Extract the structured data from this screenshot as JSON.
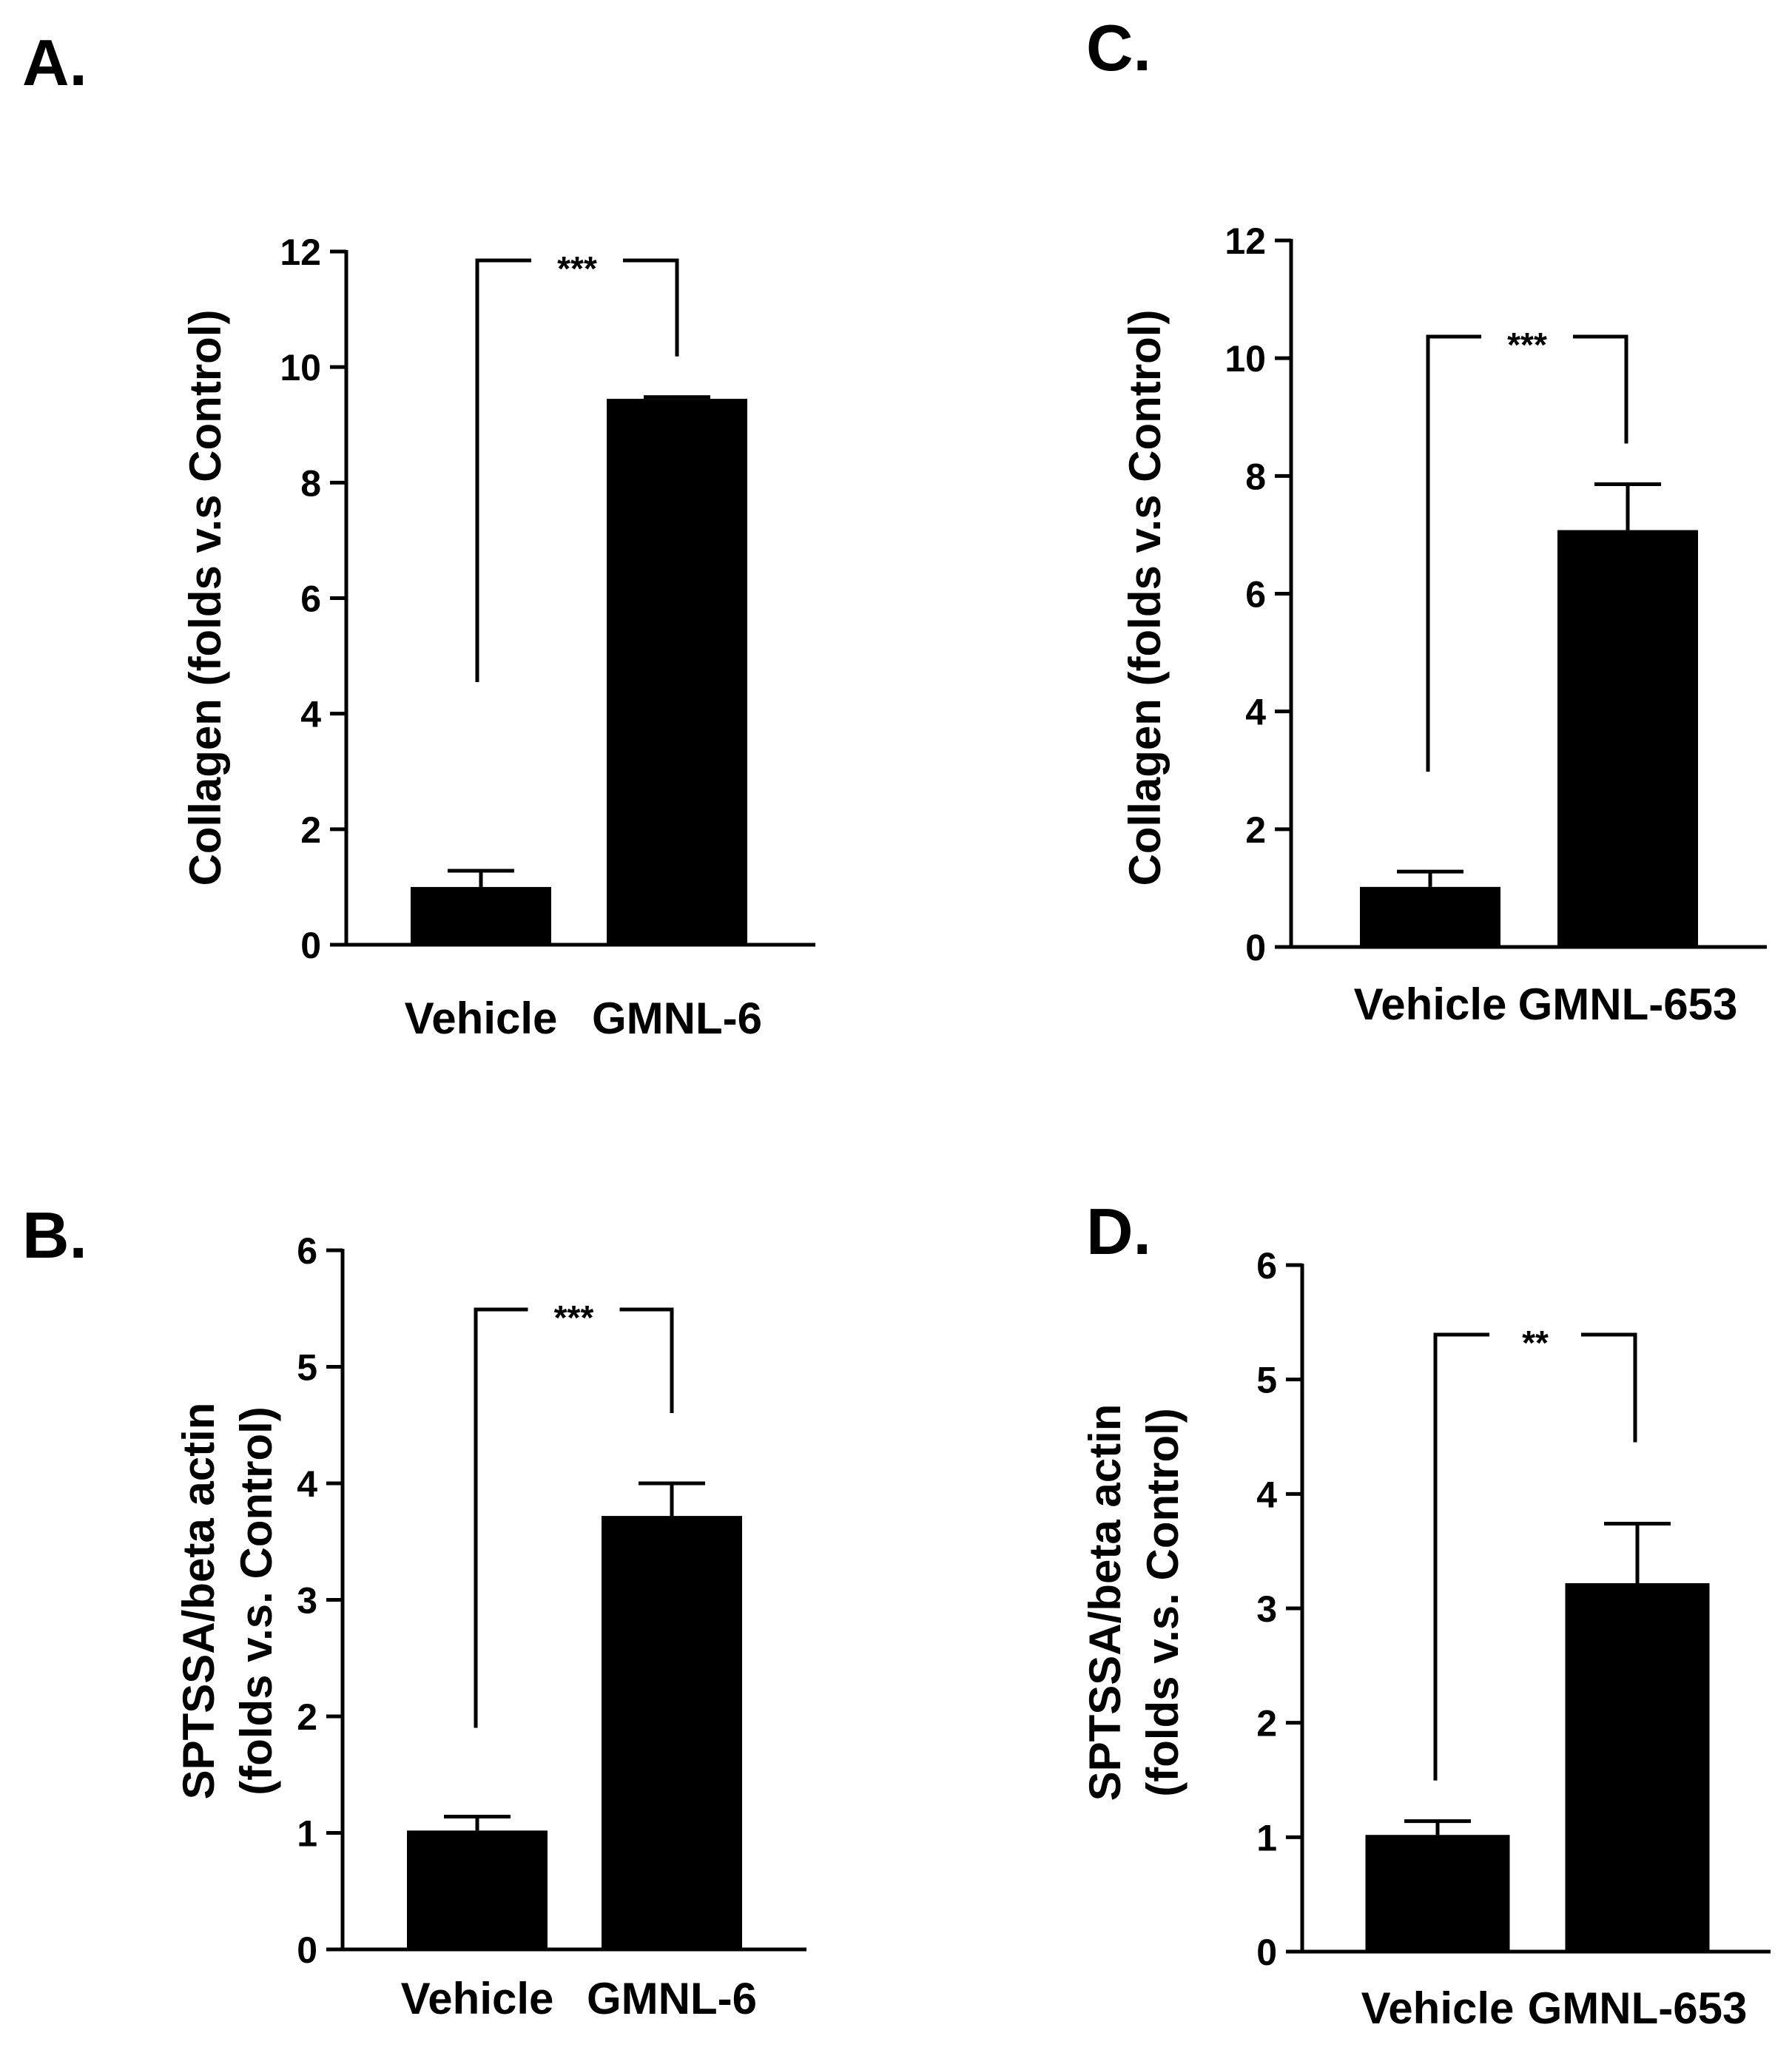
{
  "chart_data": [
    {
      "panel": "A.",
      "type": "bar",
      "ylabel_lines": [
        "Collagen (folds v.s Control)"
      ],
      "ylim": [
        0,
        12
      ],
      "yticks": [
        0,
        2,
        4,
        6,
        8,
        10,
        12
      ],
      "categories": [
        "Vehicle",
        "GMNL-6"
      ],
      "values": [
        1.0,
        9.45
      ],
      "errors": [
        0.28,
        0.03
      ],
      "significance": "***",
      "colors": {
        "bar": "#000000",
        "axis": "#000000"
      }
    },
    {
      "panel": "B.",
      "type": "bar",
      "ylabel_lines": [
        "SPTSSA/beta actin",
        "(folds v.s. Control)"
      ],
      "ylim": [
        0,
        6
      ],
      "yticks": [
        0,
        1,
        2,
        3,
        4,
        5,
        6
      ],
      "categories": [
        "Vehicle",
        "GMNL-6"
      ],
      "values": [
        1.02,
        3.72
      ],
      "errors": [
        0.12,
        0.28
      ],
      "significance": "***",
      "colors": {
        "bar": "#000000",
        "axis": "#000000"
      }
    },
    {
      "panel": "C.",
      "type": "bar",
      "ylabel_lines": [
        "Collagen (folds v.s Control)"
      ],
      "ylim": [
        0,
        12
      ],
      "yticks": [
        0,
        2,
        4,
        6,
        8,
        10,
        12
      ],
      "categories": [
        "Vehicle",
        "GMNL-653"
      ],
      "values": [
        1.02,
        7.08
      ],
      "errors": [
        0.26,
        0.78
      ],
      "significance": "***",
      "colors": {
        "bar": "#000000",
        "axis": "#000000"
      }
    },
    {
      "panel": "D.",
      "type": "bar",
      "ylabel_lines": [
        "SPTSSA/beta actin",
        "(folds v.s. Control)"
      ],
      "ylim": [
        0,
        6
      ],
      "yticks": [
        0,
        1,
        2,
        3,
        4,
        5,
        6
      ],
      "categories": [
        "Vehicle",
        "GMNL-653"
      ],
      "values": [
        1.02,
        3.22
      ],
      "errors": [
        0.12,
        0.52
      ],
      "significance": "**",
      "colors": {
        "bar": "#000000",
        "axis": "#000000"
      }
    }
  ]
}
